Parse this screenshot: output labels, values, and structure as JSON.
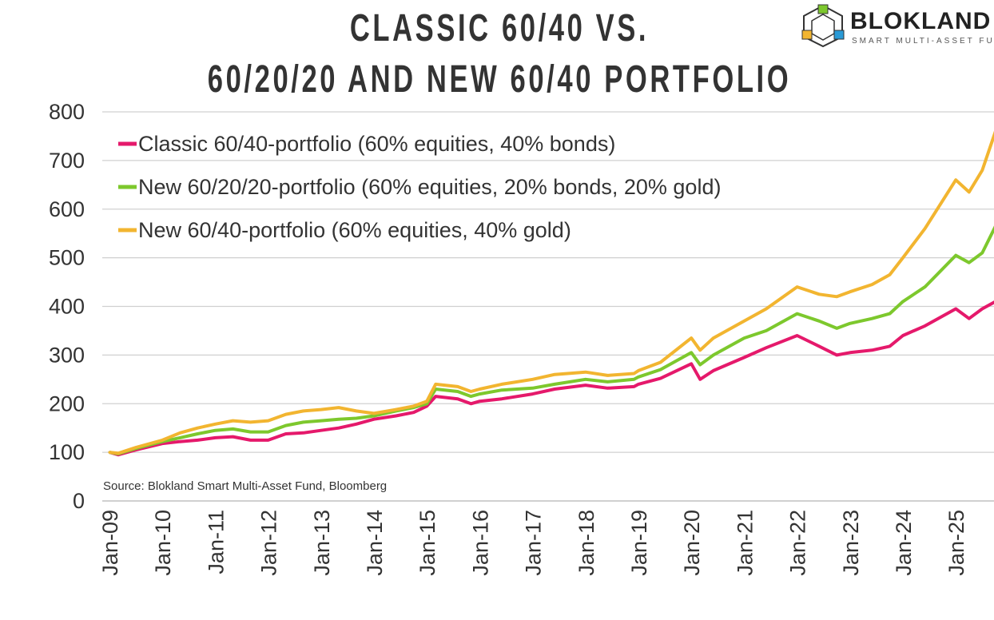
{
  "title_lines": [
    "CLASSIC 60/40 VS.",
    "60/20/20 AND NEW 60/40 PORTFOLIO"
  ],
  "logo": {
    "word": "BLOKLAND",
    "tagline": "SMART MULTI-ASSET FUND"
  },
  "source": "Source: Blokland Smart Multi-Asset Fund, Bloomberg",
  "chart_data": {
    "type": "line",
    "title": "CLASSIC 60/40 VS. 60/20/20 AND NEW 60/40 PORTFOLIO",
    "xlabel": "",
    "ylabel": "",
    "ylim": [
      0,
      800
    ],
    "yticks": [
      "0",
      "100",
      "200",
      "300",
      "400",
      "500",
      "600",
      "700",
      "800"
    ],
    "xticks": [
      "Jan-09",
      "Jan-10",
      "Jan-11",
      "Jan-12",
      "Jan-13",
      "Jan-14",
      "Jan-15",
      "Jan-16",
      "Jan-17",
      "Jan-18",
      "Jan-19",
      "Jan-20",
      "Jan-21",
      "Jan-22",
      "Jan-23",
      "Jan-24",
      "Jan-25"
    ],
    "grid": true,
    "legend_position": "top-left",
    "x": [
      "2009-01",
      "2009-03",
      "2009-07",
      "2010-01",
      "2010-05",
      "2010-09",
      "2011-01",
      "2011-05",
      "2011-09",
      "2012-01",
      "2012-05",
      "2012-09",
      "2013-01",
      "2013-05",
      "2013-09",
      "2014-01",
      "2014-06",
      "2014-10",
      "2015-01",
      "2015-03",
      "2015-08",
      "2015-11",
      "2016-01",
      "2016-06",
      "2017-01",
      "2017-06",
      "2018-01",
      "2018-06",
      "2018-12",
      "2019-01",
      "2019-06",
      "2020-01",
      "2020-03",
      "2020-06",
      "2021-01",
      "2021-06",
      "2022-01",
      "2022-06",
      "2022-10",
      "2023-01",
      "2023-06",
      "2023-10",
      "2024-01",
      "2024-06",
      "2025-01",
      "2025-04",
      "2025-07",
      "2025-10"
    ],
    "series": [
      {
        "name": "Classic 60/40-portfolio (60% equities, 40% bonds)",
        "color": "#e5196b",
        "values": [
          100,
          95,
          105,
          118,
          122,
          125,
          130,
          132,
          125,
          125,
          138,
          140,
          145,
          150,
          158,
          168,
          175,
          182,
          195,
          215,
          210,
          200,
          205,
          210,
          220,
          230,
          238,
          232,
          235,
          240,
          252,
          282,
          250,
          268,
          295,
          315,
          340,
          318,
          300,
          305,
          310,
          318,
          340,
          360,
          395,
          375,
          395,
          410
        ]
      },
      {
        "name": "New 60/20/20-portfolio (60% equities, 20% bonds, 20% gold)",
        "color": "#7dc82d",
        "values": [
          100,
          97,
          108,
          122,
          130,
          138,
          145,
          148,
          142,
          142,
          155,
          162,
          165,
          168,
          170,
          175,
          185,
          192,
          200,
          230,
          225,
          215,
          220,
          228,
          232,
          240,
          250,
          245,
          250,
          255,
          270,
          305,
          280,
          300,
          335,
          350,
          385,
          370,
          355,
          365,
          375,
          385,
          410,
          440,
          505,
          490,
          510,
          565
        ]
      },
      {
        "name": "New 60/40-portfolio (60% equities, 40% gold)",
        "color": "#f2b530",
        "values": [
          100,
          98,
          110,
          125,
          140,
          150,
          158,
          165,
          162,
          165,
          178,
          185,
          188,
          192,
          185,
          180,
          188,
          195,
          205,
          240,
          235,
          225,
          230,
          240,
          250,
          260,
          265,
          258,
          262,
          268,
          285,
          335,
          310,
          335,
          370,
          395,
          440,
          425,
          420,
          430,
          445,
          465,
          500,
          560,
          660,
          635,
          680,
          760
        ]
      }
    ]
  }
}
